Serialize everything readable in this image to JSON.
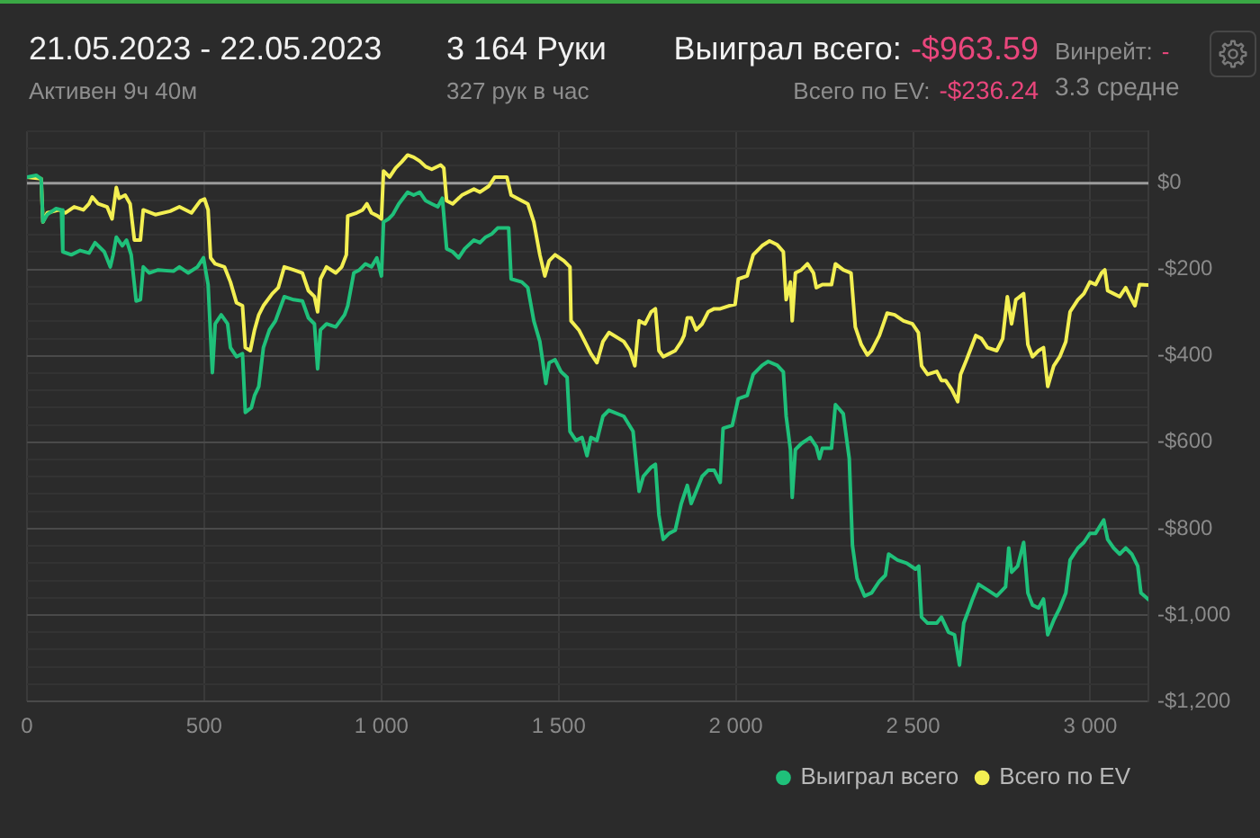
{
  "chart_data": {
    "type": "line",
    "title": "21.05.2023 - 22.05.2023",
    "subtitle": "Активен 9ч 40м",
    "annotations": [
      "3 164 Руки",
      "327 рук в час",
      "Выиграл всего:",
      "-$963.59",
      "Всего по EV:",
      "-$236.24",
      "Винрейт:",
      "-",
      "3.3 средне"
    ],
    "xlim": [
      0,
      3164
    ],
    "xticks": [
      0,
      500,
      {
        "value": 1000,
        "label": "1 000"
      },
      {
        "value": 1500,
        "label": "1 500"
      },
      {
        "value": 2000,
        "label": "2 000"
      },
      {
        "value": 2500,
        "label": "2 500"
      },
      {
        "value": 3000,
        "label": "3 000"
      }
    ],
    "ylim": [
      -1200,
      120
    ],
    "yticks": [
      {
        "value": -1200,
        "label": "-$1,200"
      },
      {
        "value": -1160,
        "label": null
      },
      {
        "value": -1120,
        "label": null
      },
      {
        "value": -1080,
        "label": null
      },
      {
        "value": -1040,
        "label": null
      },
      {
        "value": -1000,
        "label": "-$1,000"
      },
      {
        "value": -960,
        "label": null
      },
      {
        "value": -920,
        "label": null
      },
      {
        "value": -880,
        "label": null
      },
      {
        "value": -840,
        "label": null
      },
      {
        "value": -800,
        "label": "-$800"
      },
      {
        "value": -760,
        "label": null
      },
      {
        "value": -720,
        "label": null
      },
      {
        "value": -680,
        "label": null
      },
      {
        "value": -640,
        "label": null
      },
      {
        "value": -600,
        "label": "-$600"
      },
      {
        "value": -560,
        "label": null
      },
      {
        "value": -520,
        "label": null
      },
      {
        "value": -480,
        "label": null
      },
      {
        "value": -440,
        "label": null
      },
      {
        "value": -400,
        "label": "-$400"
      },
      {
        "value": -360,
        "label": null
      },
      {
        "value": -320,
        "label": null
      },
      {
        "value": -280,
        "label": null
      },
      {
        "value": -240,
        "label": null
      },
      {
        "value": -200,
        "label": "-$200"
      },
      {
        "value": -160,
        "label": null
      },
      {
        "value": -120,
        "label": null
      },
      {
        "value": -80,
        "label": null
      },
      {
        "value": -40,
        "label": null
      },
      {
        "value": 0,
        "label": "$0"
      },
      {
        "value": 40,
        "label": null
      },
      {
        "value": 80,
        "label": null
      },
      {
        "value": 120,
        "label": null
      }
    ],
    "grid": true,
    "legend": "bottom right",
    "ref_lines": [
      {
        "axis": "y",
        "value": 0,
        "color": "#9c9c9c"
      }
    ],
    "series": [
      {
        "name": "Выиграл всего",
        "color": "#1fc07a",
        "x": [
          0,
          26,
          40,
          45,
          57,
          82,
          97,
          101,
          125,
          150,
          175,
          192,
          218,
          235,
          243,
          252,
          269,
          281,
          294,
          308,
          320,
          328,
          345,
          370,
          413,
          430,
          455,
          481,
          498,
          511,
          523,
          531,
          548,
          566,
          574,
          591,
          608,
          616,
          633,
          642,
          654,
          667,
          684,
          701,
          726,
          752,
          777,
          794,
          811,
          820,
          828,
          845,
          871,
          896,
          905,
          922,
          938,
          955,
          972,
          987,
          1000,
          1006,
          1020,
          1032,
          1049,
          1074,
          1091,
          1108,
          1125,
          1142,
          1159,
          1172,
          1184,
          1201,
          1218,
          1235,
          1261,
          1278,
          1294,
          1311,
          1328,
          1359,
          1366,
          1396,
          1413,
          1430,
          1447,
          1464,
          1473,
          1490,
          1507,
          1524,
          1532,
          1549,
          1566,
          1580,
          1591,
          1608,
          1625,
          1642,
          1684,
          1710,
          1727,
          1739,
          1761,
          1773,
          1783,
          1795,
          1812,
          1829,
          1846,
          1863,
          1874,
          1888,
          1905,
          1922,
          1939,
          1956,
          1964,
          1990,
          2007,
          2032,
          2049,
          2074,
          2091,
          2117,
          2134,
          2142,
          2154,
          2159,
          2168,
          2185,
          2210,
          2227,
          2236,
          2244,
          2270,
          2281,
          2303,
          2320,
          2329,
          2342,
          2363,
          2383,
          2405,
          2422,
          2431,
          2456,
          2482,
          2507,
          2516,
          2524,
          2541,
          2567,
          2580,
          2600,
          2617,
          2631,
          2643,
          2659,
          2668,
          2685,
          2710,
          2736,
          2761,
          2770,
          2778,
          2795,
          2812,
          2824,
          2837,
          2854,
          2868,
          2880,
          2897,
          2914,
          2931,
          2943,
          2965,
          2982,
          2999,
          3015,
          3038,
          3049,
          3066,
          3083,
          3100,
          3117,
          3134,
          3143,
          3164
        ],
        "values": [
          14,
          18,
          10,
          -90,
          -73,
          -59,
          -62,
          -159,
          -166,
          -156,
          -162,
          -138,
          -159,
          -194,
          -166,
          -125,
          -145,
          -132,
          -166,
          -273,
          -270,
          -194,
          -208,
          -201,
          -204,
          -194,
          -208,
          -194,
          -173,
          -235,
          -439,
          -326,
          -305,
          -326,
          -381,
          -402,
          -395,
          -531,
          -520,
          -492,
          -471,
          -381,
          -340,
          -319,
          -263,
          -270,
          -273,
          -312,
          -326,
          -430,
          -340,
          -326,
          -333,
          -305,
          -284,
          -208,
          -201,
          -187,
          -194,
          -173,
          -215,
          -90,
          -83,
          -73,
          -48,
          -21,
          -28,
          -21,
          -41,
          -48,
          -55,
          -35,
          -152,
          -159,
          -173,
          -152,
          -132,
          -138,
          -125,
          -118,
          -104,
          -104,
          -222,
          -229,
          -242,
          -319,
          -367,
          -464,
          -416,
          -409,
          -437,
          -450,
          -575,
          -596,
          -589,
          -631,
          -589,
          -596,
          -540,
          -526,
          -540,
          -575,
          -714,
          -679,
          -658,
          -651,
          -769,
          -825,
          -811,
          -804,
          -742,
          -700,
          -742,
          -714,
          -679,
          -665,
          -665,
          -693,
          -568,
          -561,
          -499,
          -492,
          -443,
          -422,
          -413,
          -422,
          -437,
          -540,
          -617,
          -728,
          -617,
          -603,
          -589,
          -610,
          -638,
          -614,
          -614,
          -513,
          -534,
          -638,
          -839,
          -915,
          -956,
          -949,
          -922,
          -908,
          -859,
          -873,
          -880,
          -894,
          -887,
          -1005,
          -1019,
          -1019,
          -1005,
          -1040,
          -1046,
          -1116,
          -1019,
          -984,
          -963,
          -929,
          -942,
          -956,
          -935,
          -845,
          -901,
          -887,
          -832,
          -949,
          -977,
          -984,
          -963,
          -1046,
          -1012,
          -984,
          -949,
          -873,
          -845,
          -832,
          -811,
          -811,
          -780,
          -825,
          -845,
          -859,
          -845,
          -859,
          -887,
          -949,
          -964
        ]
      },
      {
        "name": "Всего по EV",
        "color": "#f3ef52",
        "x": [
          0,
          40,
          45,
          57,
          91,
          108,
          133,
          159,
          175,
          184,
          201,
          226,
          240,
          252,
          260,
          277,
          291,
          303,
          320,
          328,
          362,
          404,
          430,
          464,
          489,
          501,
          511,
          518,
          531,
          557,
          574,
          591,
          608,
          616,
          630,
          642,
          654,
          667,
          692,
          709,
          726,
          752,
          777,
          794,
          811,
          820,
          828,
          845,
          871,
          888,
          901,
          905,
          930,
          947,
          959,
          972,
          989,
          1000,
          1006,
          1023,
          1040,
          1057,
          1074,
          1091,
          1108,
          1125,
          1142,
          1167,
          1176,
          1184,
          1201,
          1227,
          1261,
          1278,
          1303,
          1320,
          1354,
          1366,
          1396,
          1413,
          1430,
          1447,
          1461,
          1473,
          1490,
          1515,
          1532,
          1535,
          1557,
          1574,
          1591,
          1608,
          1625,
          1642,
          1684,
          1701,
          1715,
          1727,
          1744,
          1761,
          1773,
          1783,
          1795,
          1812,
          1829,
          1846,
          1854,
          1863,
          1874,
          1888,
          1905,
          1922,
          1939,
          1956,
          1981,
          1998,
          2007,
          2032,
          2049,
          2074,
          2095,
          2117,
          2134,
          2142,
          2154,
          2159,
          2168,
          2185,
          2202,
          2219,
          2227,
          2244,
          2270,
          2281,
          2303,
          2325,
          2337,
          2354,
          2371,
          2383,
          2405,
          2427,
          2448,
          2473,
          2498,
          2515,
          2524,
          2541,
          2567,
          2580,
          2592,
          2609,
          2626,
          2634,
          2651,
          2677,
          2693,
          2710,
          2736,
          2753,
          2766,
          2778,
          2790,
          2812,
          2824,
          2837,
          2854,
          2868,
          2880,
          2897,
          2914,
          2931,
          2943,
          2965,
          2982,
          2999,
          3015,
          3032,
          3041,
          3049,
          3066,
          3083,
          3100,
          3117,
          3126,
          3139,
          3164
        ],
        "values": [
          14,
          10,
          -90,
          -69,
          -62,
          -69,
          -55,
          -62,
          -48,
          -32,
          -48,
          -55,
          -83,
          -10,
          -35,
          -28,
          -48,
          -132,
          -132,
          -62,
          -73,
          -65,
          -55,
          -69,
          -41,
          -37,
          -62,
          -173,
          -187,
          -194,
          -229,
          -277,
          -284,
          -381,
          -388,
          -340,
          -305,
          -284,
          -256,
          -242,
          -194,
          -201,
          -208,
          -249,
          -263,
          -298,
          -222,
          -194,
          -208,
          -194,
          -166,
          -76,
          -69,
          -62,
          -48,
          -69,
          -76,
          -83,
          28,
          14,
          35,
          49,
          65,
          60,
          51,
          38,
          32,
          42,
          35,
          -41,
          -48,
          -28,
          -14,
          -21,
          -7,
          14,
          14,
          -28,
          -41,
          -48,
          -90,
          -166,
          -215,
          -180,
          -166,
          -180,
          -194,
          -319,
          -340,
          -367,
          -395,
          -416,
          -367,
          -346,
          -367,
          -388,
          -423,
          -319,
          -326,
          -298,
          -291,
          -388,
          -402,
          -395,
          -388,
          -367,
          -353,
          -312,
          -312,
          -340,
          -326,
          -298,
          -291,
          -291,
          -284,
          -281,
          -222,
          -215,
          -166,
          -145,
          -134,
          -143,
          -159,
          -270,
          -229,
          -319,
          -208,
          -201,
          -187,
          -208,
          -242,
          -235,
          -235,
          -187,
          -201,
          -208,
          -333,
          -374,
          -398,
          -388,
          -353,
          -301,
          -305,
          -319,
          -326,
          -346,
          -423,
          -443,
          -436,
          -457,
          -457,
          -478,
          -506,
          -443,
          -409,
          -353,
          -360,
          -381,
          -388,
          -360,
          -263,
          -326,
          -270,
          -256,
          -374,
          -402,
          -388,
          -381,
          -471,
          -423,
          -402,
          -367,
          -298,
          -270,
          -256,
          -229,
          -235,
          -208,
          -201,
          -249,
          -256,
          -263,
          -242,
          -270,
          -284,
          -235,
          -236
        ]
      }
    ]
  }
}
